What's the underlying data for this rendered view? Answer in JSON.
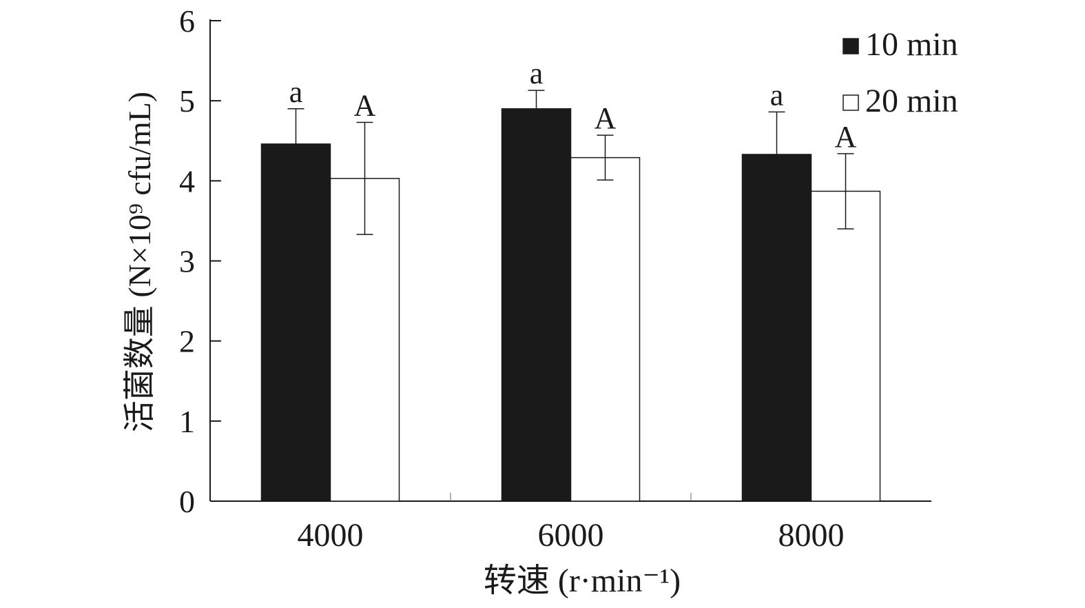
{
  "chart_data": {
    "type": "bar",
    "title": "",
    "xlabel": "转速 (r·min⁻¹)",
    "ylabel": "活菌数量 (N×10⁹ cfu/mL)",
    "categories": [
      "4000",
      "6000",
      "8000"
    ],
    "ylim": [
      0,
      6
    ],
    "yticks": [
      "0",
      "1",
      "2",
      "3",
      "4",
      "5",
      "6"
    ],
    "grid": false,
    "legend_position": "top-right",
    "series": [
      {
        "name": "10 min",
        "values": [
          4.46,
          4.9,
          4.33
        ],
        "errors": [
          0.44,
          0.23,
          0.53
        ],
        "labels": [
          "a",
          "a",
          "a"
        ],
        "fill": "#1a1a1a"
      },
      {
        "name": "20 min",
        "values": [
          4.03,
          4.29,
          3.87
        ],
        "errors": [
          0.7,
          0.28,
          0.47
        ],
        "labels": [
          "A",
          "A",
          "A"
        ],
        "fill": "#ffffff"
      }
    ]
  }
}
